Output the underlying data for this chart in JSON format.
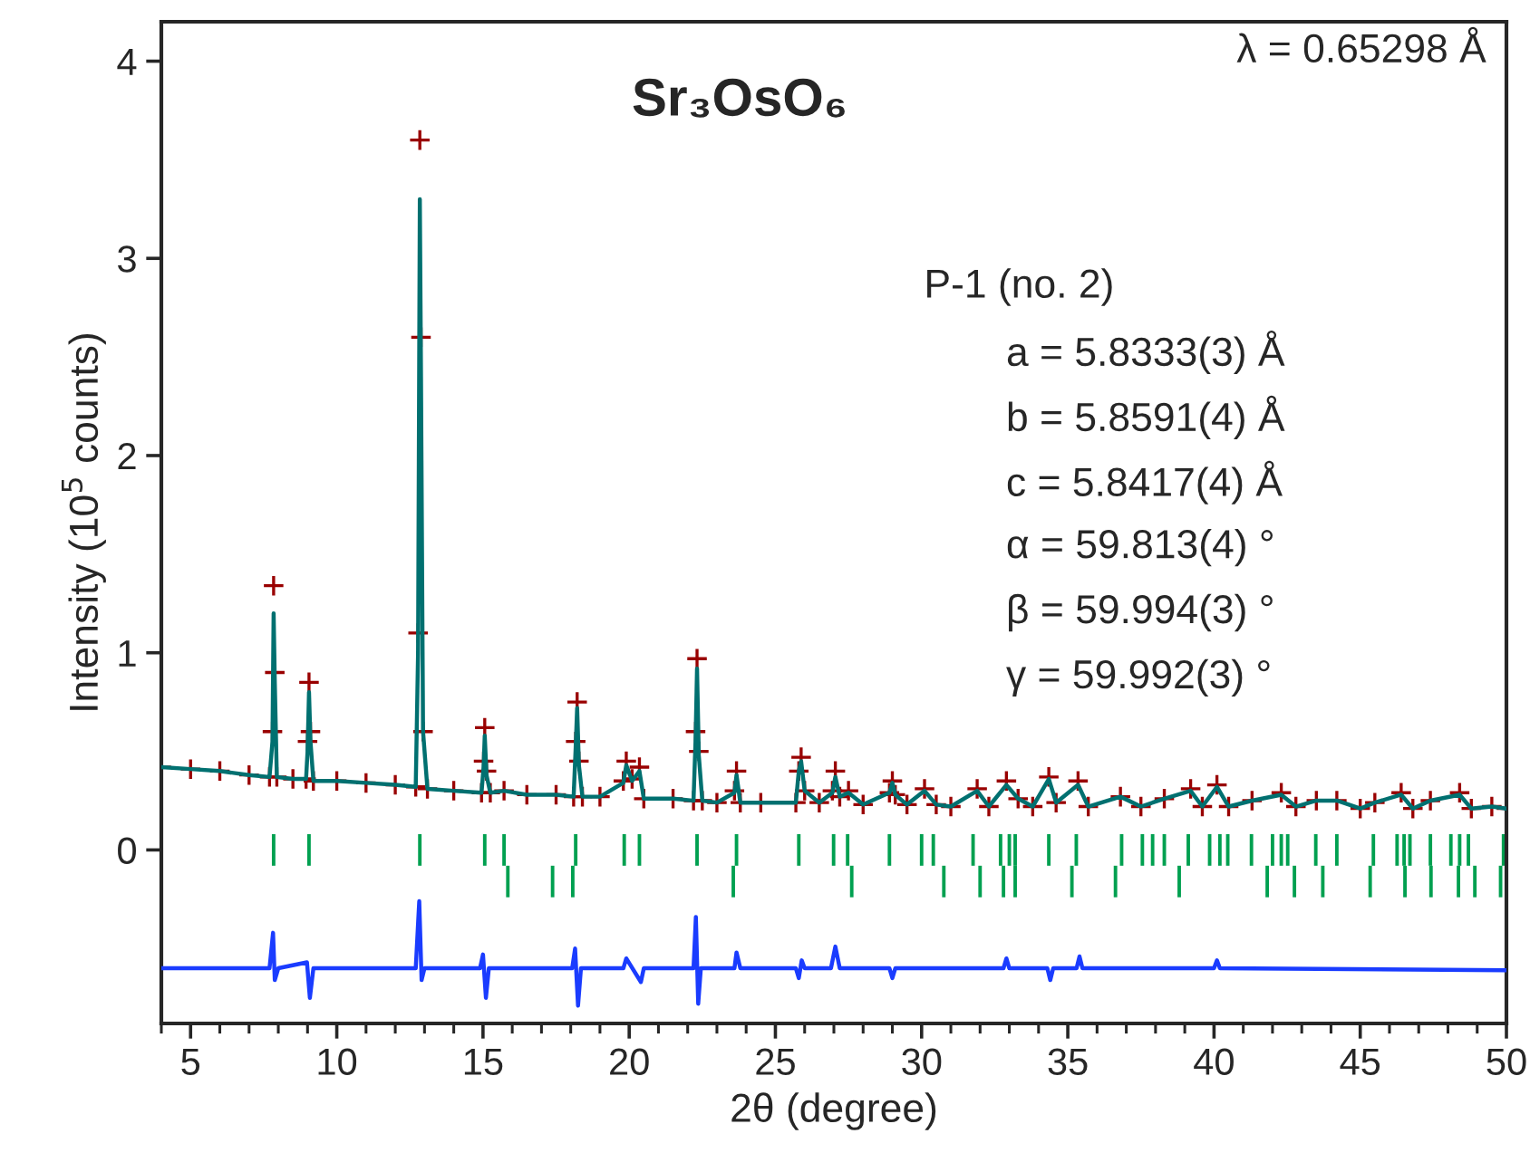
{
  "chart_data": {
    "type": "scatter",
    "xlabel": "2θ (degree)",
    "ylabel": "Intensity (10$^{5}$ counts)",
    "annotations": [
      "Sr₃OsO₆",
      "λ = 0.65298 Å",
      "P-1 (no. 2)",
      "a = 5.8333(3) Å",
      "b = 5.8591(4) Å",
      "c = 5.8417(4) Å",
      "α = 59.813(4) °",
      "β = 59.994(3) °",
      "γ = 59.992(3) °"
    ],
    "xlim": [
      4,
      50
    ],
    "ylim": [
      -0.88,
      4.2
    ],
    "xticks": [
      {
        "value": 4,
        "label": null
      },
      5,
      {
        "value": 6,
        "label": null
      },
      {
        "value": 7,
        "label": null
      },
      {
        "value": 8,
        "label": null
      },
      {
        "value": 9,
        "label": null
      },
      10,
      {
        "value": 11,
        "label": null
      },
      {
        "value": 12,
        "label": null
      },
      {
        "value": 13,
        "label": null
      },
      {
        "value": 14,
        "label": null
      },
      15,
      {
        "value": 16,
        "label": null
      },
      {
        "value": 17,
        "label": null
      },
      {
        "value": 18,
        "label": null
      },
      {
        "value": 19,
        "label": null
      },
      20,
      {
        "value": 21,
        "label": null
      },
      {
        "value": 22,
        "label": null
      },
      {
        "value": 23,
        "label": null
      },
      {
        "value": 24,
        "label": null
      },
      25,
      {
        "value": 26,
        "label": null
      },
      {
        "value": 27,
        "label": null
      },
      {
        "value": 28,
        "label": null
      },
      {
        "value": 29,
        "label": null
      },
      30,
      {
        "value": 31,
        "label": null
      },
      {
        "value": 32,
        "label": null
      },
      {
        "value": 33,
        "label": null
      },
      {
        "value": 34,
        "label": null
      },
      35,
      {
        "value": 36,
        "label": null
      },
      {
        "value": 37,
        "label": null
      },
      {
        "value": 38,
        "label": null
      },
      {
        "value": 39,
        "label": null
      },
      40,
      {
        "value": 41,
        "label": null
      },
      {
        "value": 42,
        "label": null
      },
      {
        "value": 43,
        "label": null
      },
      {
        "value": 44,
        "label": null
      },
      45,
      {
        "value": 46,
        "label": null
      },
      {
        "value": 47,
        "label": null
      },
      {
        "value": 48,
        "label": null
      },
      {
        "value": 49,
        "label": null
      },
      50
    ],
    "yticks": [
      0,
      1,
      2,
      3,
      4
    ],
    "grid": false,
    "legend": false,
    "series": [
      {
        "type": "line",
        "color": "#007070",
        "line_style": "solid",
        "marker": "none",
        "x": [
          4.0,
          5.0,
          6.0,
          7.0,
          7.7,
          7.8,
          7.84,
          7.88,
          7.95,
          8.5,
          8.95,
          9.0,
          9.05,
          9.1,
          9.2,
          10.0,
          11.0,
          12.0,
          12.7,
          12.78,
          12.84,
          12.88,
          12.95,
          13.1,
          14.0,
          14.95,
          15.02,
          15.06,
          15.12,
          15.25,
          15.72,
          16.5,
          17.5,
          18.1,
          18.17,
          18.22,
          18.28,
          18.4,
          19.0,
          19.8,
          19.9,
          20.1,
          20.35,
          20.5,
          21.5,
          22.2,
          22.27,
          22.32,
          22.38,
          22.5,
          23.0,
          23.6,
          23.67,
          23.8,
          24.5,
          25.7,
          25.8,
          25.88,
          26.0,
          26.5,
          26.95,
          27.05,
          27.2,
          27.5,
          28.0,
          28.9,
          29.0,
          29.1,
          29.5,
          30.1,
          30.5,
          31.0,
          31.9,
          32.3,
          32.9,
          33.3,
          33.8,
          34.35,
          34.6,
          35.35,
          35.7,
          36.8,
          37.5,
          38.3,
          39.2,
          39.6,
          40.1,
          40.5,
          41.3,
          42.3,
          42.8,
          43.5,
          44.2,
          45.0,
          45.5,
          46.4,
          46.8,
          47.4,
          48.4,
          48.8,
          49.5,
          50.0
        ],
        "values": [
          0.42,
          0.41,
          0.4,
          0.38,
          0.37,
          0.55,
          1.2,
          0.85,
          0.37,
          0.36,
          0.36,
          0.5,
          0.8,
          0.55,
          0.35,
          0.35,
          0.34,
          0.33,
          0.32,
          1.0,
          3.3,
          2.4,
          0.6,
          0.31,
          0.3,
          0.29,
          0.42,
          0.58,
          0.38,
          0.29,
          0.3,
          0.28,
          0.28,
          0.27,
          0.52,
          0.72,
          0.43,
          0.27,
          0.27,
          0.34,
          0.43,
          0.35,
          0.4,
          0.26,
          0.26,
          0.25,
          0.56,
          0.92,
          0.48,
          0.25,
          0.24,
          0.29,
          0.38,
          0.24,
          0.24,
          0.24,
          0.4,
          0.45,
          0.3,
          0.24,
          0.29,
          0.37,
          0.27,
          0.29,
          0.23,
          0.29,
          0.34,
          0.28,
          0.23,
          0.3,
          0.23,
          0.22,
          0.3,
          0.22,
          0.33,
          0.26,
          0.22,
          0.36,
          0.24,
          0.33,
          0.22,
          0.27,
          0.22,
          0.26,
          0.3,
          0.22,
          0.32,
          0.22,
          0.25,
          0.28,
          0.22,
          0.25,
          0.25,
          0.21,
          0.24,
          0.28,
          0.21,
          0.25,
          0.28,
          0.21,
          0.22,
          0.21
        ]
      },
      {
        "color": "#990000",
        "marker": "cross",
        "x": [
          4.0,
          5.0,
          6.0,
          7.0,
          7.7,
          7.8,
          7.84,
          7.88,
          7.95,
          8.5,
          8.95,
          9.0,
          9.05,
          9.1,
          9.2,
          10.0,
          11.0,
          12.0,
          12.7,
          12.78,
          12.84,
          12.88,
          12.95,
          13.1,
          14.0,
          14.95,
          15.02,
          15.06,
          15.12,
          15.25,
          15.72,
          16.5,
          17.5,
          18.1,
          18.17,
          18.22,
          18.28,
          18.4,
          19.0,
          19.8,
          19.9,
          20.1,
          20.35,
          20.5,
          21.5,
          22.2,
          22.27,
          22.32,
          22.38,
          22.5,
          23.0,
          23.6,
          23.67,
          23.8,
          24.5,
          25.7,
          25.8,
          25.88,
          26.0,
          26.5,
          26.95,
          27.05,
          27.2,
          27.5,
          28.0,
          28.9,
          29.0,
          29.1,
          29.5,
          30.1,
          30.5,
          31.0,
          31.9,
          32.3,
          32.9,
          33.3,
          33.8,
          34.35,
          34.6,
          35.35,
          35.7,
          36.8,
          37.5,
          38.3,
          39.2,
          39.6,
          40.1,
          40.5,
          41.3,
          42.3,
          42.8,
          43.5,
          44.2,
          45.0,
          45.5,
          46.4,
          46.8,
          47.4,
          48.4,
          48.8,
          49.5,
          50.0
        ],
        "values": [
          0.42,
          0.41,
          0.4,
          0.38,
          0.37,
          0.6,
          1.34,
          0.9,
          0.37,
          0.36,
          0.36,
          0.55,
          0.85,
          0.6,
          0.35,
          0.35,
          0.34,
          0.33,
          0.32,
          1.1,
          3.6,
          2.6,
          0.6,
          0.31,
          0.3,
          0.29,
          0.45,
          0.62,
          0.4,
          0.29,
          0.3,
          0.28,
          0.28,
          0.27,
          0.55,
          0.75,
          0.45,
          0.27,
          0.27,
          0.35,
          0.45,
          0.36,
          0.42,
          0.26,
          0.26,
          0.25,
          0.6,
          0.97,
          0.5,
          0.25,
          0.24,
          0.3,
          0.4,
          0.24,
          0.24,
          0.24,
          0.4,
          0.47,
          0.3,
          0.24,
          0.3,
          0.4,
          0.27,
          0.3,
          0.23,
          0.29,
          0.35,
          0.28,
          0.23,
          0.31,
          0.23,
          0.22,
          0.31,
          0.22,
          0.35,
          0.26,
          0.22,
          0.37,
          0.24,
          0.35,
          0.22,
          0.27,
          0.22,
          0.26,
          0.31,
          0.22,
          0.33,
          0.22,
          0.25,
          0.29,
          0.22,
          0.25,
          0.25,
          0.21,
          0.24,
          0.29,
          0.21,
          0.25,
          0.29,
          0.21,
          0.22,
          0.21
        ]
      },
      {
        "type": "bar",
        "color": "#00a050",
        "x": [
          7.84,
          9.05,
          12.84,
          15.06,
          15.72,
          18.17,
          19.83,
          20.35,
          22.32,
          23.67,
          25.8,
          26.99,
          27.47,
          28.9,
          30.0,
          30.4,
          31.76,
          32.7,
          33.0,
          33.2,
          34.35,
          35.29,
          36.84,
          37.55,
          37.9,
          38.3,
          39.12,
          39.85,
          40.2,
          40.47,
          41.28,
          42.0,
          42.3,
          42.52,
          43.48,
          44.2,
          45.45,
          46.26,
          46.5,
          46.7,
          47.4,
          48.1,
          48.4,
          48.7,
          49.9
        ],
        "base": [
          -0.08,
          -0.08,
          -0.08,
          -0.08,
          -0.08,
          -0.08,
          -0.08,
          -0.08,
          -0.08,
          -0.08,
          -0.08,
          -0.08,
          -0.08,
          -0.08,
          -0.08,
          -0.08,
          -0.08,
          -0.08,
          -0.08,
          -0.08,
          -0.08,
          -0.08,
          -0.08,
          -0.08,
          -0.08,
          -0.08,
          -0.08,
          -0.08,
          -0.08,
          -0.08,
          -0.08,
          -0.08,
          -0.08,
          -0.08,
          -0.08,
          -0.08,
          -0.08,
          -0.08,
          -0.08,
          -0.08,
          -0.08,
          -0.08,
          -0.08,
          -0.08,
          -0.08
        ],
        "values": [
          0.16,
          0.16,
          0.16,
          0.16,
          0.16,
          0.16,
          0.16,
          0.16,
          0.16,
          0.16,
          0.16,
          0.16,
          0.16,
          0.16,
          0.16,
          0.16,
          0.16,
          0.16,
          0.16,
          0.16,
          0.16,
          0.16,
          0.16,
          0.16,
          0.16,
          0.16,
          0.16,
          0.16,
          0.16,
          0.16,
          0.16,
          0.16,
          0.16,
          0.16,
          0.16,
          0.16,
          0.16,
          0.16,
          0.16,
          0.16,
          0.16,
          0.16,
          0.16,
          0.16,
          0.16
        ]
      },
      {
        "type": "bar",
        "color": "#00a050",
        "x": [
          15.85,
          17.38,
          18.07,
          23.56,
          27.61,
          30.76,
          32.0,
          32.8,
          33.2,
          35.14,
          36.63,
          38.81,
          41.82,
          42.75,
          43.72,
          45.34,
          46.53,
          47.42,
          48.36,
          48.92,
          49.8
        ],
        "base": [
          -0.24,
          -0.24,
          -0.24,
          -0.24,
          -0.24,
          -0.24,
          -0.24,
          -0.24,
          -0.24,
          -0.24,
          -0.24,
          -0.24,
          -0.24,
          -0.24,
          -0.24,
          -0.24,
          -0.24,
          -0.24,
          -0.24,
          -0.24,
          -0.24
        ],
        "values": [
          0.16,
          0.16,
          0.16,
          0.16,
          0.16,
          0.16,
          0.16,
          0.16,
          0.16,
          0.16,
          0.16,
          0.16,
          0.16,
          0.16,
          0.16,
          0.16,
          0.16,
          0.16,
          0.16,
          0.16,
          0.16
        ]
      },
      {
        "type": "line",
        "color": "#1a3cff",
        "line_style": "solid",
        "marker": "none",
        "x": [
          4.0,
          7.7,
          7.82,
          7.88,
          8.0,
          8.98,
          9.08,
          9.2,
          12.7,
          12.82,
          12.9,
          13.0,
          14.9,
          15.0,
          15.1,
          15.2,
          18.05,
          18.15,
          18.25,
          18.35,
          19.8,
          19.9,
          20.4,
          20.5,
          22.2,
          22.28,
          22.36,
          22.45,
          23.6,
          23.67,
          23.8,
          25.7,
          25.8,
          25.9,
          26.0,
          26.9,
          27.05,
          27.2,
          28.9,
          29.0,
          29.1,
          32.8,
          32.9,
          33.0,
          34.3,
          34.4,
          34.5,
          35.3,
          35.4,
          35.5,
          40.0,
          40.1,
          40.2,
          50.0
        ],
        "values": [
          -0.6,
          -0.6,
          -0.42,
          -0.66,
          -0.6,
          -0.57,
          -0.75,
          -0.6,
          -0.6,
          -0.26,
          -0.66,
          -0.6,
          -0.6,
          -0.53,
          -0.75,
          -0.6,
          -0.6,
          -0.5,
          -0.79,
          -0.6,
          -0.6,
          -0.55,
          -0.67,
          -0.6,
          -0.6,
          -0.34,
          -0.78,
          -0.6,
          -0.6,
          -0.52,
          -0.6,
          -0.6,
          -0.65,
          -0.56,
          -0.6,
          -0.6,
          -0.49,
          -0.6,
          -0.6,
          -0.65,
          -0.6,
          -0.6,
          -0.55,
          -0.6,
          -0.6,
          -0.66,
          -0.6,
          -0.6,
          -0.54,
          -0.6,
          -0.6,
          -0.56,
          -0.6,
          -0.61
        ]
      }
    ]
  }
}
